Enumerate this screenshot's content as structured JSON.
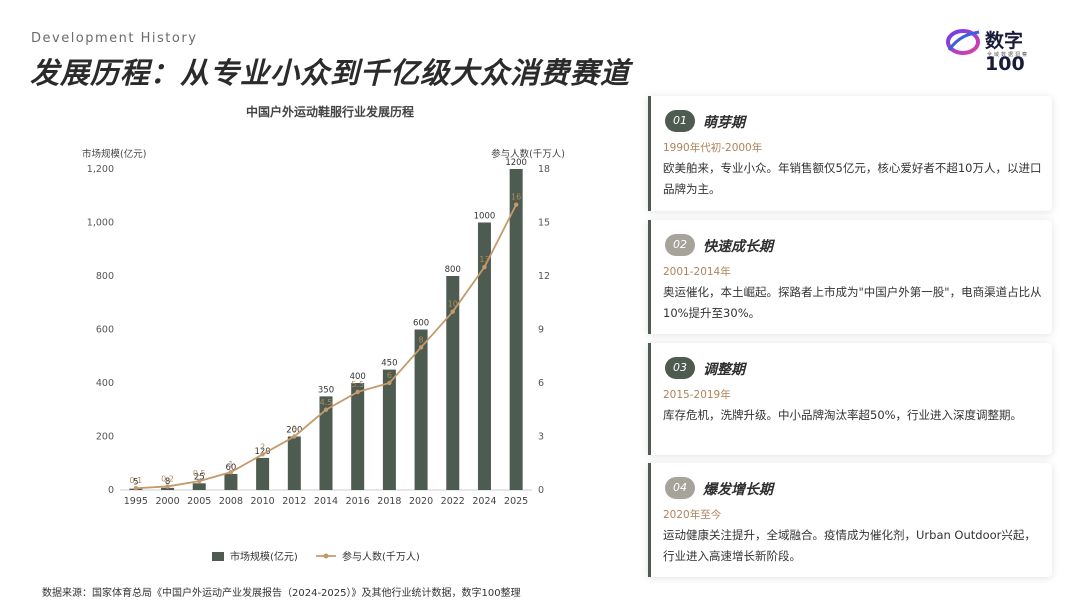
{
  "header": {
    "subtitle_en": "Development History",
    "title": "发展历程：从专业小众到千亿级大众消费赛道",
    "logo_text": "数字100",
    "logo_sub": "全域数据洞察"
  },
  "chart_data": {
    "type": "bar",
    "title": "中国户外运动鞋服行业发展历程",
    "categories": [
      "1995",
      "2000",
      "2005",
      "2008",
      "2010",
      "2012",
      "2014",
      "2016",
      "2018",
      "2020",
      "2022",
      "2024",
      "2025"
    ],
    "series": [
      {
        "name": "市场规模(亿元)",
        "type": "bar",
        "axis": "left",
        "color": "#4e5b50",
        "values": [
          5,
          8,
          25,
          60,
          120,
          200,
          350,
          400,
          450,
          600,
          800,
          1000,
          1200
        ]
      },
      {
        "name": "参与人数(千万人)",
        "type": "line",
        "axis": "right",
        "color": "#c49a6c",
        "values": [
          0.1,
          0.2,
          0.5,
          1,
          2,
          3,
          4.5,
          5.5,
          6,
          8,
          10,
          12.5,
          16
        ],
        "labels": [
          "0.1",
          "0.2",
          "0.5",
          "1",
          "2",
          "3",
          "4.5",
          "5.5",
          "6",
          "8",
          "10",
          "13",
          "16"
        ]
      }
    ],
    "ylabel_left": "市场规模(亿元)",
    "ylabel_right": "参与人数(千万人)",
    "ylim_left": [
      0,
      1200
    ],
    "ylim_right": [
      0,
      18
    ],
    "yticks_left": [
      "0",
      "200",
      "400",
      "600",
      "800",
      "1,000",
      "1,200"
    ],
    "yticks_right": [
      "0",
      "3",
      "6",
      "9",
      "12",
      "15",
      "18"
    ],
    "grid": false,
    "legend": "bottom"
  },
  "source": "数据来源：国家体育总局《中国户外运动产业发展报告（2024-2025）》及其他行业统计数据，数字100整理",
  "phases": [
    {
      "num": "01",
      "name": "萌芽期",
      "period": "1990年代初-2000年",
      "desc": "欧美舶来，专业小众。年销售额仅5亿元，核心爱好者不超10万人，以进口品牌为主。"
    },
    {
      "num": "02",
      "name": "快速成长期",
      "period": "2001-2014年",
      "desc": "奥运催化，本土崛起。探路者上市成为\"中国户外第一股\"，电商渠道占比从10%提升至30%。"
    },
    {
      "num": "03",
      "name": "调整期",
      "period": "2015-2019年",
      "desc": "库存危机，洗牌升级。中小品牌淘汰率超50%，行业进入深度调整期。"
    },
    {
      "num": "04",
      "name": "爆发增长期",
      "period": "2020年至今",
      "desc": "运动健康关注提升，全域融合。疫情成为催化剂，Urban Outdoor兴起，行业进入高速增长新阶段。"
    }
  ]
}
